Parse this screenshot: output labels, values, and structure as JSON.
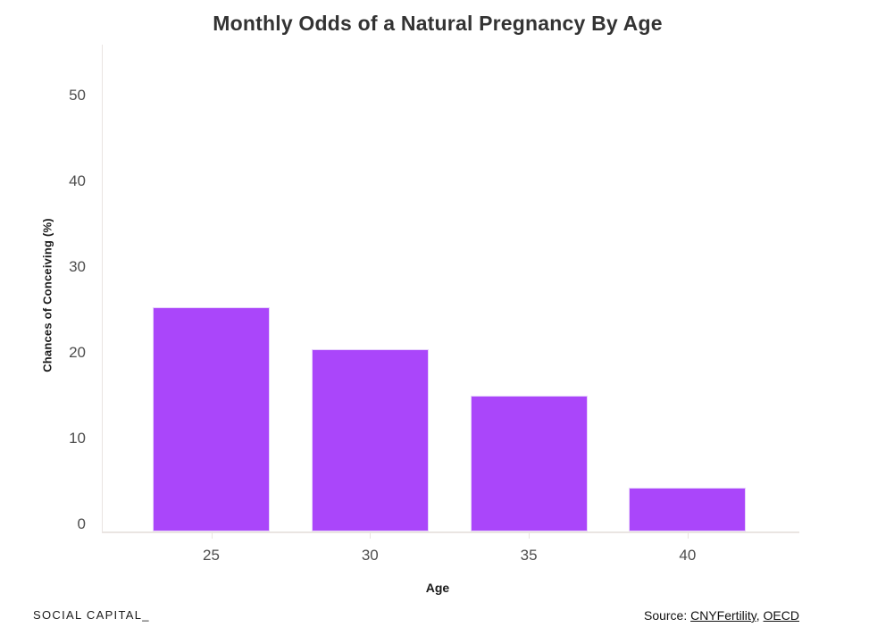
{
  "chart_data": {
    "type": "bar",
    "title": "Monthly Odds of a Natural Pregnancy By Age",
    "xlabel": "Age",
    "ylabel": "Chances of Conceiving (%)",
    "categories": [
      "25",
      "30",
      "35",
      "40"
    ],
    "values": [
      25.3,
      20.4,
      15.0,
      4.3
    ],
    "yticks": [
      0,
      10,
      20,
      30,
      40,
      50
    ],
    "ylim": [
      0,
      56
    ],
    "bar_color": "#aa46fa",
    "bar_border_color": "#e7d3fb",
    "axis_line_color": "#e9e4e1",
    "grid": false,
    "legend_position": "none"
  },
  "footer": {
    "brand": "SOCIAL CAPITAL_",
    "source_prefix": "Source: ",
    "separator": ", ",
    "links": [
      {
        "label": "CNYFertility"
      },
      {
        "label": "OECD"
      }
    ]
  }
}
